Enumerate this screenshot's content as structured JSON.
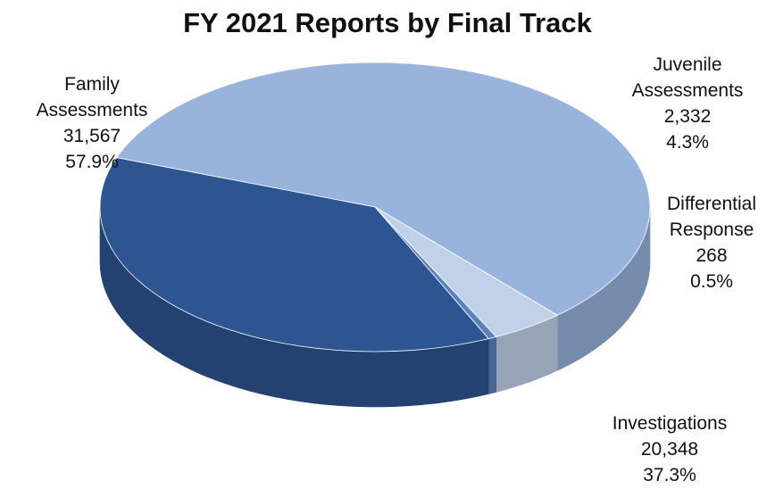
{
  "chart_data": {
    "type": "pie",
    "title": "FY 2021 Reports by Final Track",
    "slices": [
      {
        "name": "Family Assessments",
        "name_lines": [
          "Family",
          "Assessments"
        ],
        "value": 31567,
        "value_label": "31,567",
        "percent": 57.9,
        "percent_label": "57.9%",
        "color": "#99b4dc"
      },
      {
        "name": "Juvenile Assessments",
        "name_lines": [
          "Juvenile",
          "Assessments"
        ],
        "value": 2332,
        "value_label": "2,332",
        "percent": 4.3,
        "percent_label": "4.3%",
        "color": "#c2d1ea"
      },
      {
        "name": "Differential Response",
        "name_lines": [
          "Differential",
          "Response"
        ],
        "value": 268,
        "value_label": "268",
        "percent": 0.5,
        "percent_label": "0.5%",
        "color": "#5c82bd"
      },
      {
        "name": "Investigations",
        "name_lines": [
          "Investigations"
        ],
        "value": 20348,
        "value_label": "20,348",
        "percent": 37.3,
        "percent_label": "37.3%",
        "color": "#2d5592"
      }
    ],
    "legend": "none"
  }
}
